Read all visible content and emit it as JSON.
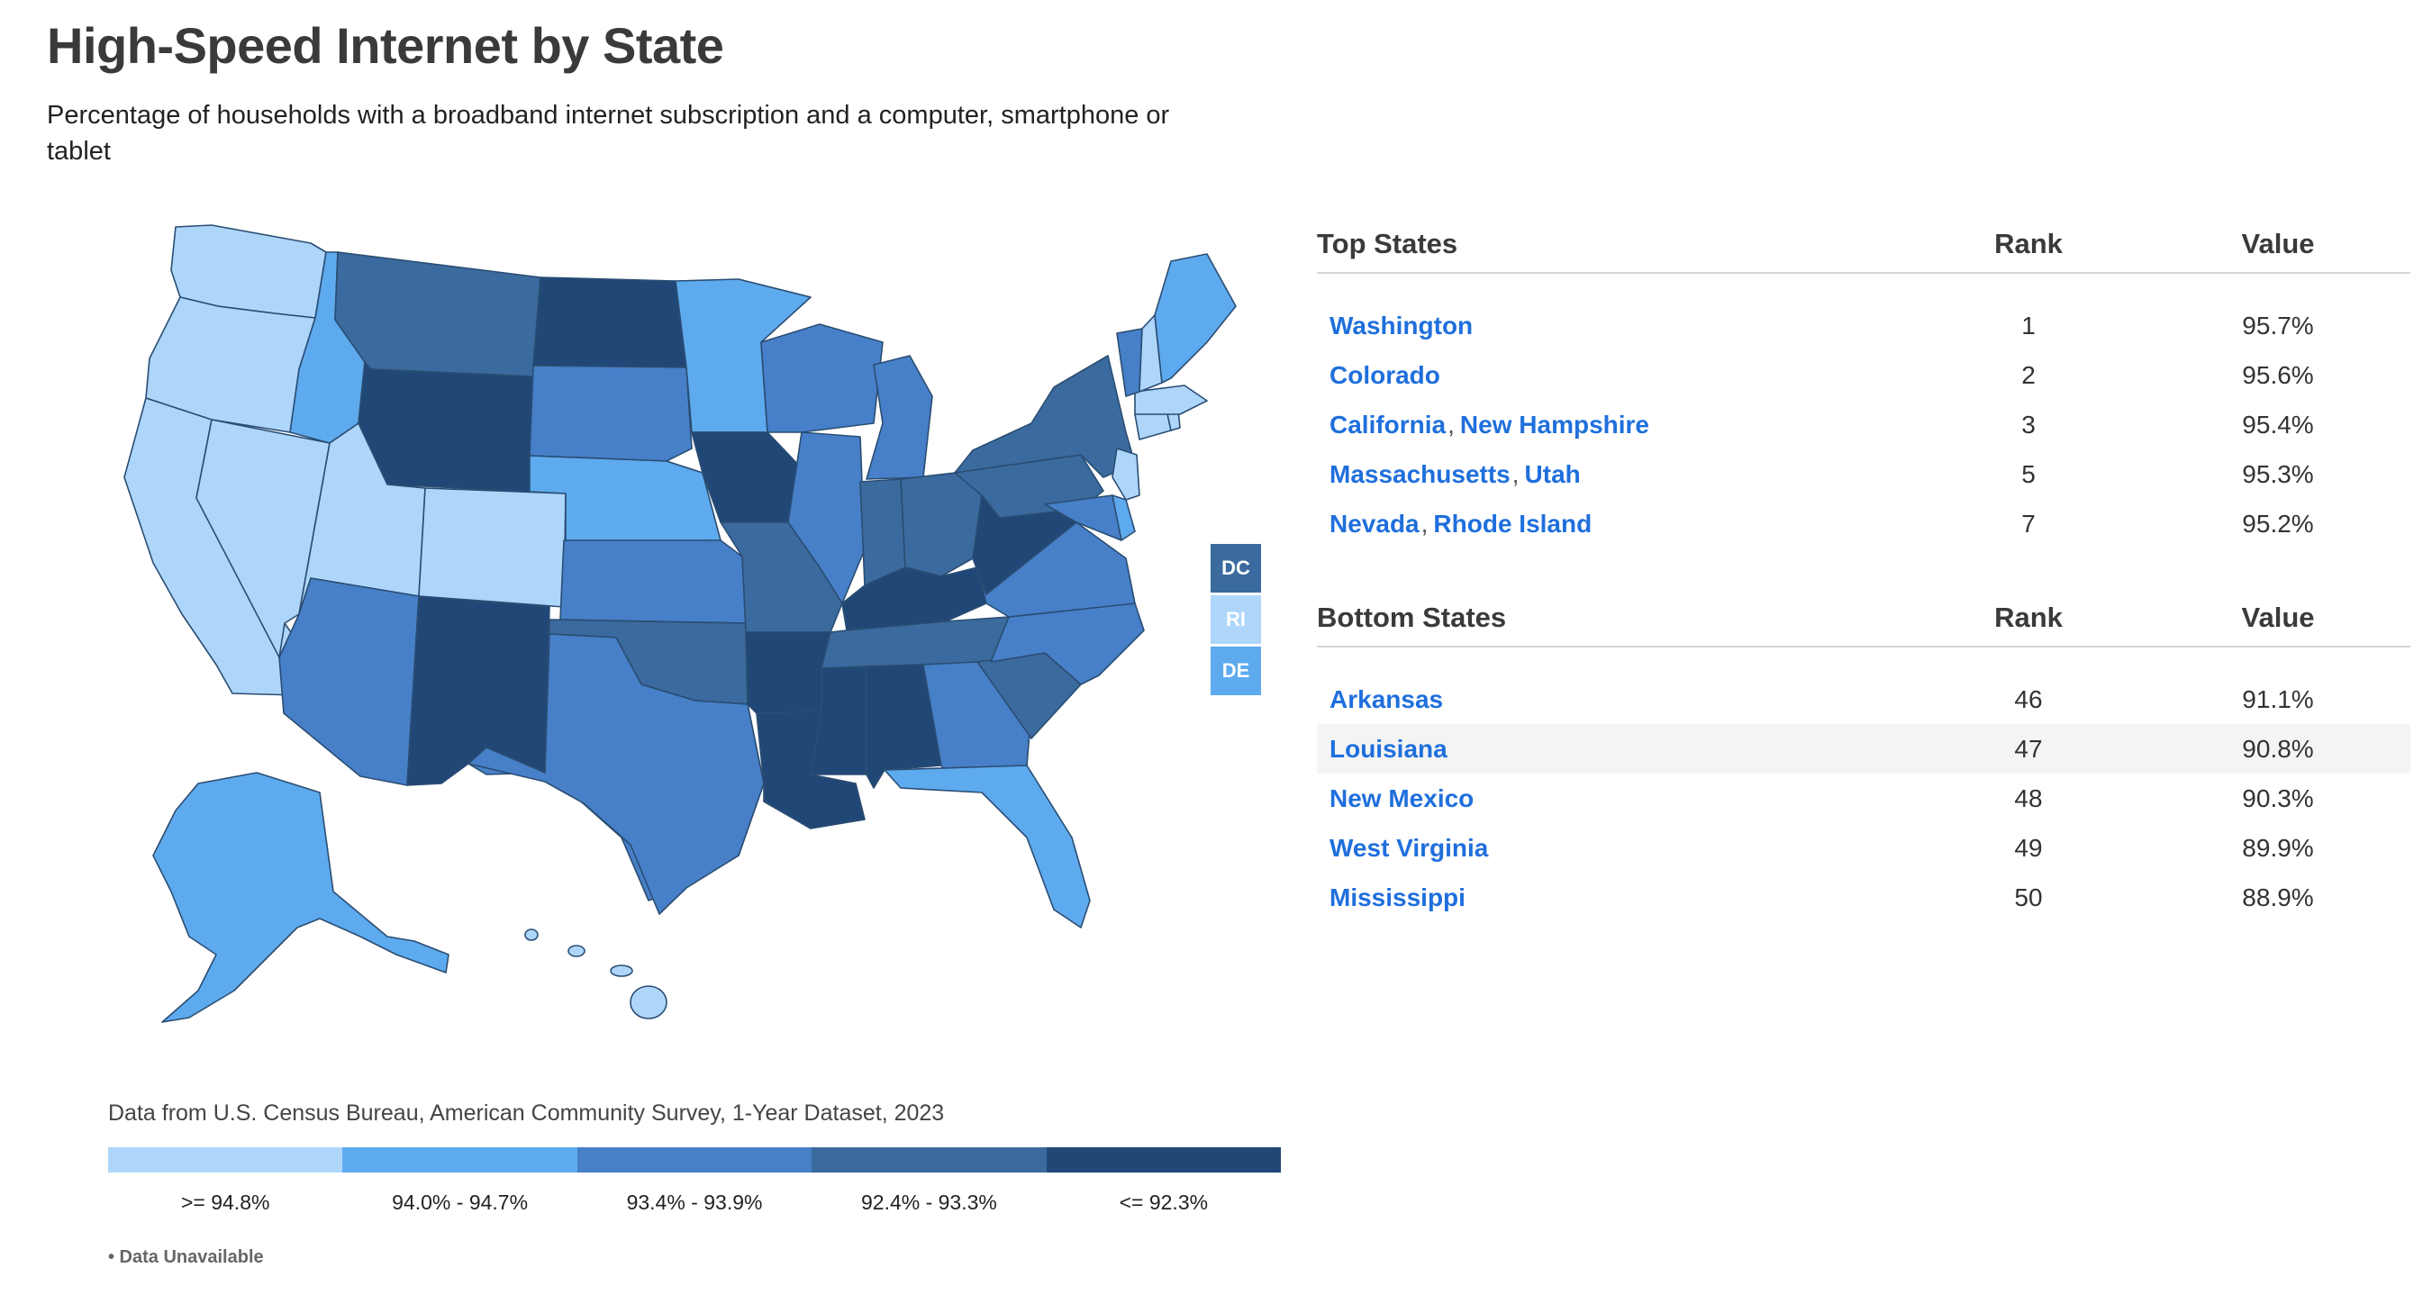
{
  "title": "High-Speed Internet by State",
  "subtitle": "Percentage of households with a broadband internet subscription and a computer, smartphone or tablet",
  "source": "Data from U.S. Census Bureau, American Community Survey, 1-Year Dataset, 2023",
  "unavailable": "• Data Unavailable",
  "colors": {
    "c1": "#aed6fb",
    "c2": "#5eaaee",
    "c3": "#4780c8",
    "c4": "#3b6a9e",
    "c5": "#214776",
    "link": "#1f6fdc"
  },
  "legend": [
    {
      "label": ">= 94.8%",
      "color": "#aed6fb"
    },
    {
      "label": "94.0% - 94.7%",
      "color": "#5eaaee"
    },
    {
      "label": "93.4% - 93.9%",
      "color": "#4780c8"
    },
    {
      "label": "92.4% - 93.3%",
      "color": "#3b6a9e"
    },
    {
      "label": "<= 92.3%",
      "color": "#214776"
    }
  ],
  "small_states": [
    {
      "label": "DC",
      "color": "#3b6a9e"
    },
    {
      "label": "RI",
      "color": "#aed6fb"
    },
    {
      "label": "DE",
      "color": "#5eaaee"
    }
  ],
  "top": {
    "header": {
      "state": "Top States",
      "rank": "Rank",
      "value": "Value"
    },
    "rows": [
      {
        "states": [
          "Washington"
        ],
        "rank": "1",
        "value": "95.7%"
      },
      {
        "states": [
          "Colorado"
        ],
        "rank": "2",
        "value": "95.6%"
      },
      {
        "states": [
          "California",
          "New Hampshire"
        ],
        "rank": "3",
        "value": "95.4%"
      },
      {
        "states": [
          "Massachusetts",
          "Utah"
        ],
        "rank": "5",
        "value": "95.3%"
      },
      {
        "states": [
          "Nevada",
          "Rhode Island"
        ],
        "rank": "7",
        "value": "95.2%"
      }
    ]
  },
  "bottom": {
    "header": {
      "state": "Bottom States",
      "rank": "Rank",
      "value": "Value"
    },
    "rows": [
      {
        "states": [
          "Arkansas"
        ],
        "rank": "46",
        "value": "91.1%"
      },
      {
        "states": [
          "Louisiana"
        ],
        "rank": "47",
        "value": "90.8%"
      },
      {
        "states": [
          "New Mexico"
        ],
        "rank": "48",
        "value": "90.3%"
      },
      {
        "states": [
          "West Virginia"
        ],
        "rank": "49",
        "value": "89.9%"
      },
      {
        "states": [
          "Mississippi"
        ],
        "rank": "50",
        "value": "88.9%"
      }
    ]
  }
}
